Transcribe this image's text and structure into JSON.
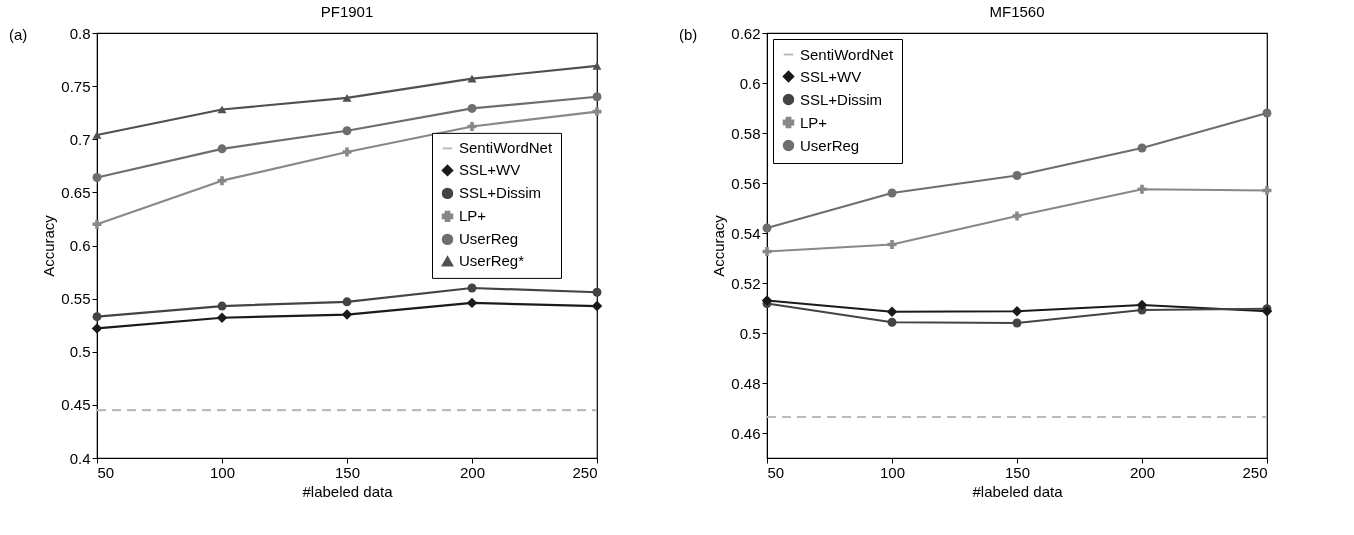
{
  "chart_data": [
    {
      "type": "line",
      "title": "PF1901",
      "xlabel": "#labeled data",
      "ylabel": "Accuracy",
      "annotations": [
        "(a)"
      ],
      "x": [
        50,
        100,
        150,
        200,
        250
      ],
      "xlim": [
        50,
        250
      ],
      "xticks": [
        50,
        100,
        150,
        200,
        250
      ],
      "ylim": [
        0.4,
        0.8
      ],
      "yticks": [
        0.4,
        0.45,
        0.5,
        0.55,
        0.6,
        0.65,
        0.7,
        0.75,
        0.8
      ],
      "grid": false,
      "legend": "right",
      "series": [
        {
          "name": "SentiWordNet",
          "color": "#bbbbbb",
          "marker": "none",
          "line_style": "dashed",
          "values": [
            0.445,
            0.445,
            0.445,
            0.445,
            0.445
          ]
        },
        {
          "name": "SSL+WV",
          "color": "#1a1a1a",
          "marker": "diamond",
          "line_style": "solid",
          "values": [
            0.522,
            0.532,
            0.535,
            0.546,
            0.543
          ]
        },
        {
          "name": "SSL+Dissim",
          "color": "#444444",
          "marker": "circle",
          "line_style": "solid",
          "values": [
            0.533,
            0.543,
            0.547,
            0.56,
            0.556
          ]
        },
        {
          "name": "LP+",
          "color": "#888888",
          "marker": "cross",
          "line_style": "solid",
          "values": [
            0.62,
            0.661,
            0.688,
            0.712,
            0.726
          ]
        },
        {
          "name": "UserReg",
          "color": "#6e6e6e",
          "marker": "circle",
          "line_style": "solid",
          "values": [
            0.664,
            0.691,
            0.708,
            0.729,
            0.74
          ]
        },
        {
          "name": "UserReg*",
          "color": "#505050",
          "marker": "triangle",
          "line_style": "solid",
          "values": [
            0.704,
            0.728,
            0.739,
            0.757,
            0.769
          ]
        }
      ]
    },
    {
      "type": "line",
      "title": "MF1560",
      "xlabel": "#labeled data",
      "ylabel": "Accuracy",
      "annotations": [
        "(b)"
      ],
      "x": [
        50,
        100,
        150,
        200,
        250
      ],
      "xlim": [
        50,
        250
      ],
      "xticks": [
        50,
        100,
        150,
        200,
        250
      ],
      "ylim": [
        0.45,
        0.62
      ],
      "yticks": [
        0.46,
        0.48,
        0.5,
        0.52,
        0.54,
        0.56,
        0.58,
        0.6,
        0.62
      ],
      "grid": false,
      "legend": "top left",
      "series": [
        {
          "name": "SentiWordNet",
          "color": "#bbbbbb",
          "marker": "none",
          "line_style": "dashed",
          "values": [
            0.4664,
            0.4664,
            0.4664,
            0.4664,
            0.4664
          ]
        },
        {
          "name": "SSL+WV",
          "color": "#1a1a1a",
          "marker": "diamond",
          "line_style": "solid",
          "values": [
            0.513,
            0.5085,
            0.5087,
            0.5112,
            0.5087
          ]
        },
        {
          "name": "SSL+Dissim",
          "color": "#444444",
          "marker": "circle",
          "line_style": "solid",
          "values": [
            0.5118,
            0.5043,
            0.504,
            0.5092,
            0.5097
          ]
        },
        {
          "name": "LP+",
          "color": "#888888",
          "marker": "cross",
          "line_style": "solid",
          "values": [
            0.5326,
            0.5354,
            0.5468,
            0.5575,
            0.557
          ]
        },
        {
          "name": "UserReg",
          "color": "#6e6e6e",
          "marker": "circle",
          "line_style": "solid",
          "values": [
            0.542,
            0.556,
            0.563,
            0.574,
            0.588
          ]
        }
      ]
    }
  ]
}
